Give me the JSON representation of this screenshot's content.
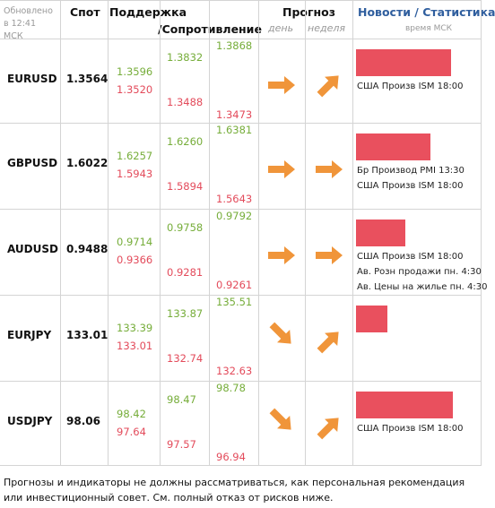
{
  "header": {
    "updated": "Обновлено в 12:41 МСК",
    "spot": "Спот",
    "support": "Поддержка",
    "resistance": "/Сопротивление",
    "forecast": "Прогноз",
    "day": "день",
    "week": "неделя",
    "news": "Новости / Статистика",
    "time_note": "время МСК"
  },
  "rows": [
    {
      "pair": "EURUSD",
      "spot": "1.3564",
      "levels": [
        [
          "1.3596",
          "1.3520"
        ],
        [
          "1.3832",
          "1.3488"
        ],
        [
          "1.3868",
          "1.3473"
        ]
      ],
      "news": [
        "США Произв ISM 18:00"
      ]
    },
    {
      "pair": "GBPUSD",
      "spot": "1.6022",
      "levels": [
        [
          "1.6257",
          "1.5943"
        ],
        [
          "1.6260",
          "1.5894"
        ],
        [
          "1.6381",
          "1.5643"
        ]
      ],
      "news": [
        "Бр Производ PMI 13:30",
        "США Произв ISM 18:00"
      ]
    },
    {
      "pair": "AUDUSD",
      "spot": "0.9488",
      "levels": [
        [
          "0.9714",
          "0.9366"
        ],
        [
          "0.9758",
          "0.9281"
        ],
        [
          "0.9792",
          "0.9261"
        ]
      ],
      "news": [
        "США Произв ISM 18:00",
        "Ав. Розн продажи пн. 4:30",
        "Ав. Цены на жилье пн. 4:30"
      ]
    },
    {
      "pair": "EURJPY",
      "spot": "133.01",
      "levels": [
        [
          "133.39",
          "133.01"
        ],
        [
          "133.87",
          "132.74"
        ],
        [
          "135.51",
          "132.63"
        ]
      ],
      "news": []
    },
    {
      "pair": "USDJPY",
      "spot": "98.06",
      "levels": [
        [
          "98.42",
          "97.64"
        ],
        [
          "98.47",
          "97.57"
        ],
        [
          "98.78",
          "96.94"
        ]
      ],
      "news": [
        "США Произв ISM 18:00"
      ]
    }
  ],
  "footer": "Прогнозы и индикаторы не должны рассматриваться, как персональная рекомендация или инвестиционный совет. См. полный отказ от рисков ниже."
}
